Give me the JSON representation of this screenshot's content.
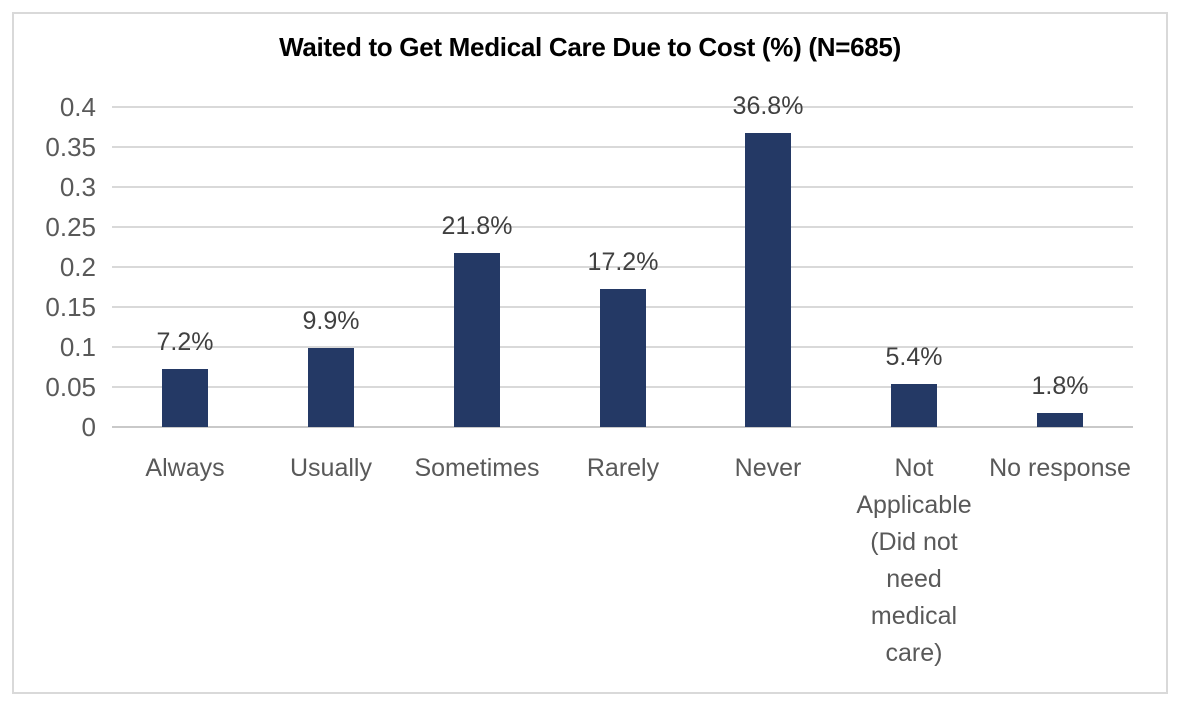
{
  "chart": {
    "title": "Waited to Get Medical Care Due to Cost (%) (N=685)"
  },
  "chart_data": {
    "type": "bar",
    "title": "Waited to Get Medical Care Due to Cost (%) (N=685)",
    "categories": [
      "Always",
      "Usually",
      "Sometimes",
      "Rarely",
      "Never",
      "Not Applicable (Did not need medical care)",
      "No response"
    ],
    "values": [
      0.072,
      0.099,
      0.218,
      0.172,
      0.368,
      0.054,
      0.018
    ],
    "data_labels": [
      "7.2%",
      "9.9%",
      "21.8%",
      "17.2%",
      "36.8%",
      "5.4%",
      "1.8%"
    ],
    "xlabel": "",
    "ylabel": "",
    "ylim": [
      0,
      0.4
    ],
    "y_ticks": [
      "0",
      "0.05",
      "0.1",
      "0.15",
      "0.2",
      "0.25",
      "0.3",
      "0.35",
      "0.4"
    ],
    "y_tick_values": [
      0,
      0.05,
      0.1,
      0.15,
      0.2,
      0.25,
      0.3,
      0.35,
      0.4
    ],
    "grid": true,
    "legend": "none",
    "sample_size": "N=685",
    "colors": {
      "bar_fill": "#243965",
      "data_label_text": "#404040",
      "axis_text": "#595959",
      "gridline": "#D9D9D9",
      "chart_border": "#D9D9D9",
      "title_text": "#000000",
      "background": "#FFFFFF"
    }
  }
}
